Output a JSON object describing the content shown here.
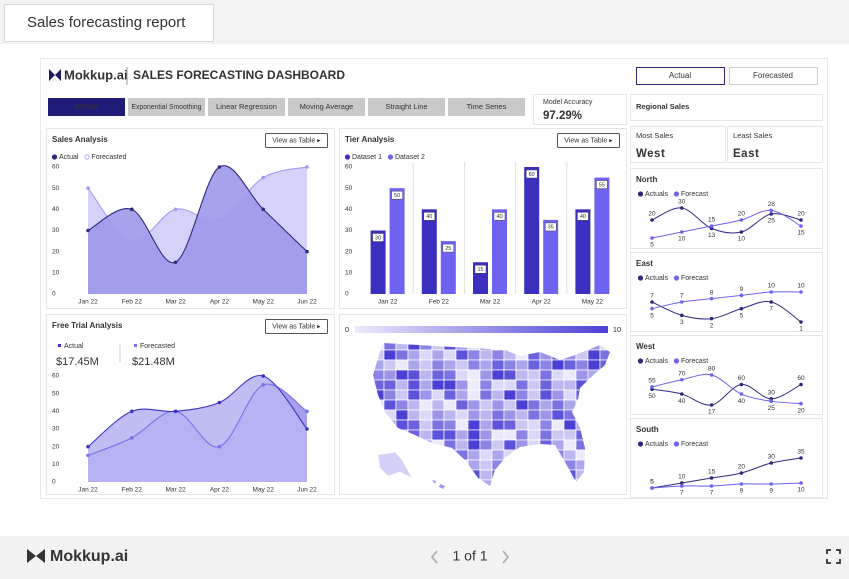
{
  "report_tab": "Sales forecasting report",
  "header": {
    "brand": "Mokkup.ai",
    "title": "SALES FORECASTING DASHBOARD"
  },
  "model_tabs": [
    "ARIMA",
    "Exponential Smoothing",
    "Linear Regression",
    "Moving Average",
    "Straight Line",
    "Time Series"
  ],
  "model_accuracy": {
    "label": "Model Accuracy",
    "value": "97.29%"
  },
  "view_toggle": [
    "Actual",
    "Forecasted"
  ],
  "regional_sales": "Regional Sales",
  "most_sales": {
    "label": "Most Sales",
    "value": "West"
  },
  "least_sales": {
    "label": "Least Sales",
    "value": "East"
  },
  "chart_data": [
    {
      "type": "area",
      "title": "Sales Analysis",
      "action": "View as Table ▸",
      "categories": [
        "Jan 22",
        "Feb 22",
        "Mar 22",
        "Apr 22",
        "May 22",
        "Jun 22"
      ],
      "series": [
        {
          "name": "Actual",
          "color": "#2d2a7e",
          "fill": "#9d98ea",
          "values": [
            30,
            40,
            15,
            60,
            40,
            20
          ]
        },
        {
          "name": "Forecasted",
          "color": "#a29cf0",
          "fill": "#d0cdf8",
          "values": [
            50,
            25,
            40,
            35,
            55,
            60
          ]
        }
      ],
      "ylim": [
        0,
        60
      ],
      "yticks": [
        0,
        10,
        20,
        30,
        40,
        50,
        60
      ]
    },
    {
      "type": "bar",
      "title": "Tier Analysis",
      "action": "View as Table ▸",
      "categories": [
        "Jan 22",
        "Feb 22",
        "Mar 22",
        "Apr 22",
        "May 22"
      ],
      "series": [
        {
          "name": "Dataset 1",
          "color": "#3a2fbf",
          "values": [
            30,
            40,
            15,
            60,
            40
          ]
        },
        {
          "name": "Dataset 2",
          "color": "#6e63f0",
          "values": [
            50,
            25,
            40,
            35,
            55
          ]
        }
      ],
      "ylim": [
        0,
        60
      ],
      "yticks": [
        0,
        10,
        20,
        30,
        40,
        50,
        60
      ]
    },
    {
      "type": "area",
      "title": "Free Trial Analysis",
      "action": "View as Table ▸",
      "kpi_values": [
        "$17.45M",
        "$21.48M"
      ],
      "categories": [
        "Jan 22",
        "Feb 22",
        "Mar 22",
        "Apr 22",
        "May 22",
        "Jun 22"
      ],
      "series": [
        {
          "name": "Actual",
          "color": "#3d33c4",
          "fill": "#b9b5f3",
          "values": [
            20,
            40,
            40,
            45,
            60,
            30
          ]
        },
        {
          "name": "Forecasted",
          "color": "#7a72ea",
          "fill": "#9c96e6",
          "values": [
            15,
            25,
            40,
            20,
            55,
            40
          ]
        }
      ],
      "ylim": [
        0,
        60
      ],
      "yticks": [
        0,
        10,
        20,
        30,
        40,
        50,
        60
      ]
    },
    {
      "type": "map",
      "scale_min": 0,
      "scale_max": 10,
      "colors": [
        "#eceafc",
        "#4b40d6"
      ]
    },
    {
      "type": "mini-line",
      "title": "North",
      "series": [
        {
          "name": "Actuals",
          "color": "#2d2a7e",
          "values": [
            20,
            30,
            13,
            10,
            25,
            20
          ]
        },
        {
          "name": "Forecast",
          "color": "#6e63f0",
          "values": [
            5,
            10,
            15,
            20,
            28,
            15
          ]
        }
      ]
    },
    {
      "type": "mini-line",
      "title": "East",
      "series": [
        {
          "name": "Actuals",
          "color": "#2d2a7e",
          "values": [
            7,
            3,
            2,
            5,
            7,
            1
          ]
        },
        {
          "name": "Forecast",
          "color": "#6e63f0",
          "values": [
            5,
            7,
            8,
            9,
            10,
            10
          ]
        }
      ]
    },
    {
      "type": "mini-line",
      "title": "West",
      "series": [
        {
          "name": "Actuals",
          "color": "#2d2a7e",
          "values": [
            50,
            40,
            17,
            60,
            30,
            60
          ]
        },
        {
          "name": "Forecast",
          "color": "#6e63f0",
          "values": [
            55,
            70,
            80,
            40,
            25,
            20
          ]
        }
      ]
    },
    {
      "type": "mini-line",
      "title": "South",
      "series": [
        {
          "name": "Actuals",
          "color": "#2d2a7e",
          "values": [
            5,
            10,
            15,
            20,
            30,
            35
          ]
        },
        {
          "name": "Forecast",
          "color": "#6e63f0",
          "values": [
            5,
            7,
            7,
            9,
            9,
            10
          ]
        }
      ]
    }
  ],
  "footer": {
    "brand": "Mokkup.ai",
    "pager": "1 of 1"
  }
}
